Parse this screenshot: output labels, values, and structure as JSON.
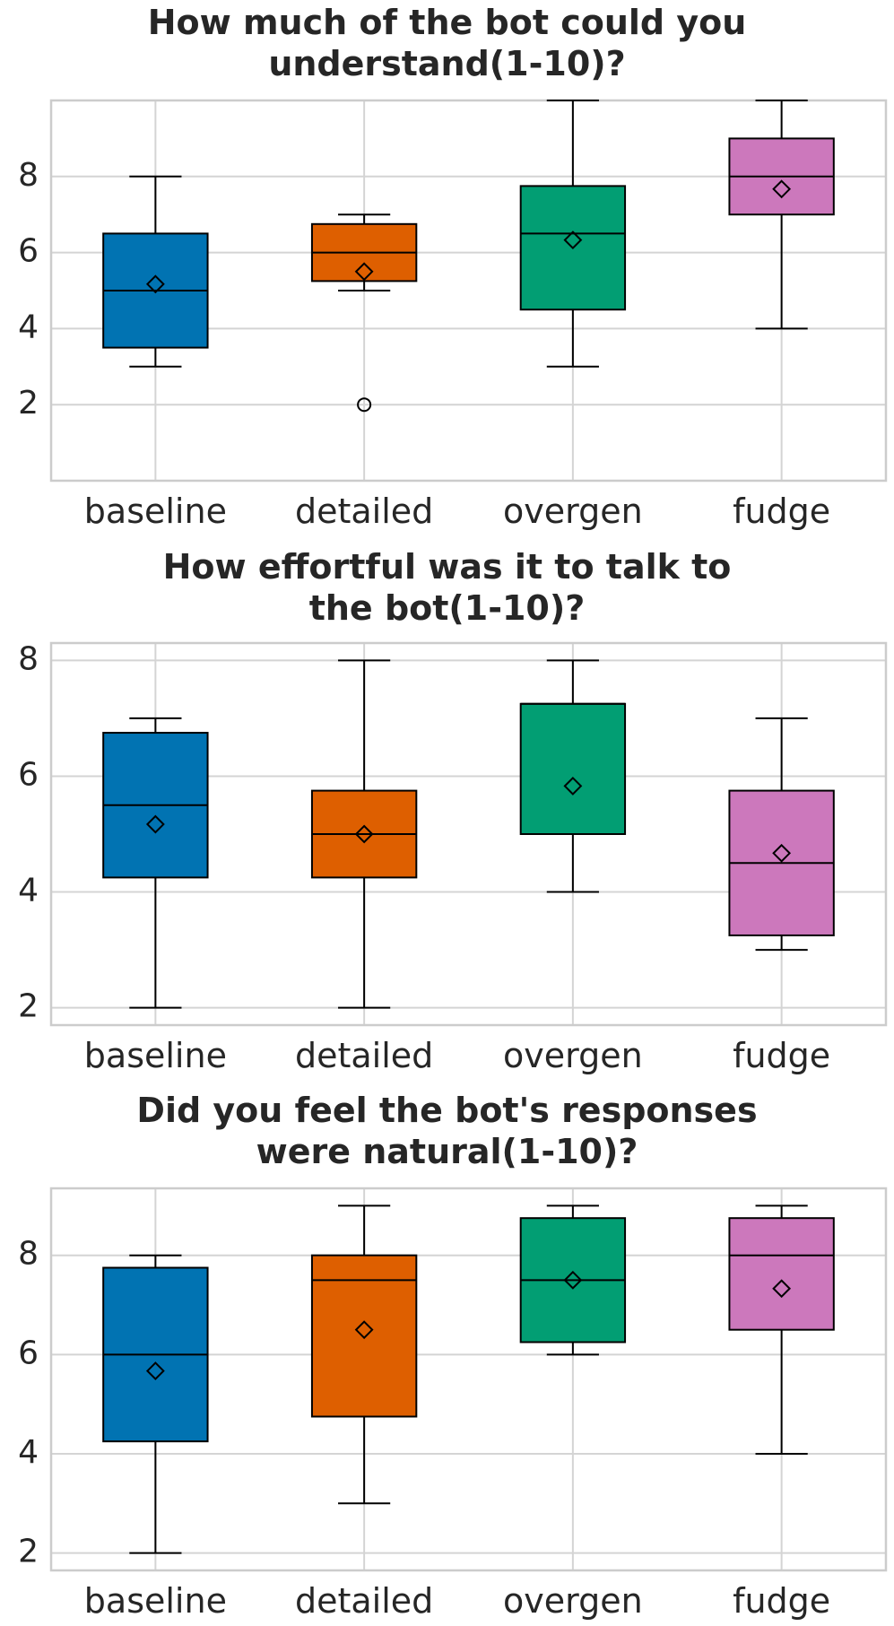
{
  "chart_data": [
    {
      "type": "box",
      "title_lines": [
        "How much of the bot could you",
        "understand(1-10)?"
      ],
      "categories": [
        "baseline",
        "detailed",
        "overgen",
        "fudge"
      ],
      "colors": [
        "#0173b2",
        "#de5f00",
        "#029e73",
        "#cc78bc"
      ],
      "ylim": [
        0,
        10
      ],
      "yticks": [
        2,
        4,
        6,
        8
      ],
      "grid": true,
      "boxes": [
        {
          "whislo": 3,
          "q1": 3.5,
          "med": 5,
          "q3": 6.5,
          "whishi": 8,
          "mean": 5.17,
          "fliers": []
        },
        {
          "whislo": 5,
          "q1": 5.25,
          "med": 6,
          "q3": 6.75,
          "whishi": 7,
          "mean": 5.5,
          "fliers": [
            2
          ]
        },
        {
          "whislo": 3,
          "q1": 4.5,
          "med": 6.5,
          "q3": 7.75,
          "whishi": 10,
          "mean": 6.33,
          "fliers": []
        },
        {
          "whislo": 4,
          "q1": 7,
          "med": 8,
          "q3": 9,
          "whishi": 10,
          "mean": 7.67,
          "fliers": []
        }
      ]
    },
    {
      "type": "box",
      "title_lines": [
        "How effortful was it to talk to",
        "the bot(1-10)?"
      ],
      "categories": [
        "baseline",
        "detailed",
        "overgen",
        "fudge"
      ],
      "colors": [
        "#0173b2",
        "#de5f00",
        "#029e73",
        "#cc78bc"
      ],
      "ylim": [
        1.7,
        8.3
      ],
      "yticks": [
        2,
        4,
        6,
        8
      ],
      "grid": true,
      "boxes": [
        {
          "whislo": 2,
          "q1": 4.25,
          "med": 5.5,
          "q3": 6.75,
          "whishi": 7,
          "mean": 5.17,
          "fliers": []
        },
        {
          "whislo": 2,
          "q1": 4.25,
          "med": 5,
          "q3": 5.75,
          "whishi": 8,
          "mean": 5.0,
          "fliers": []
        },
        {
          "whislo": 4,
          "q1": 5,
          "med": 7.25,
          "q3": 7.25,
          "whishi": 8,
          "mean": 5.83,
          "fliers": []
        },
        {
          "whislo": 3,
          "q1": 3.25,
          "med": 4.5,
          "q3": 5.75,
          "whishi": 7,
          "mean": 4.67,
          "fliers": []
        }
      ]
    },
    {
      "type": "box",
      "title_lines": [
        "Did you feel the bot's responses",
        "were natural(1-10)?"
      ],
      "categories": [
        "baseline",
        "detailed",
        "overgen",
        "fudge"
      ],
      "colors": [
        "#0173b2",
        "#de5f00",
        "#029e73",
        "#cc78bc"
      ],
      "ylim": [
        1.65,
        9.35
      ],
      "yticks": [
        2,
        4,
        6,
        8
      ],
      "grid": true,
      "boxes": [
        {
          "whislo": 2,
          "q1": 4.25,
          "med": 6,
          "q3": 7.75,
          "whishi": 8,
          "mean": 5.67,
          "fliers": []
        },
        {
          "whislo": 3,
          "q1": 4.75,
          "med": 7.5,
          "q3": 8,
          "whishi": 9,
          "mean": 6.5,
          "fliers": []
        },
        {
          "whislo": 6,
          "q1": 6.25,
          "med": 7.5,
          "q3": 8.75,
          "whishi": 9,
          "mean": 7.5,
          "fliers": []
        },
        {
          "whislo": 4,
          "q1": 6.5,
          "med": 8,
          "q3": 8.75,
          "whishi": 9,
          "mean": 7.33,
          "fliers": []
        }
      ]
    }
  ]
}
